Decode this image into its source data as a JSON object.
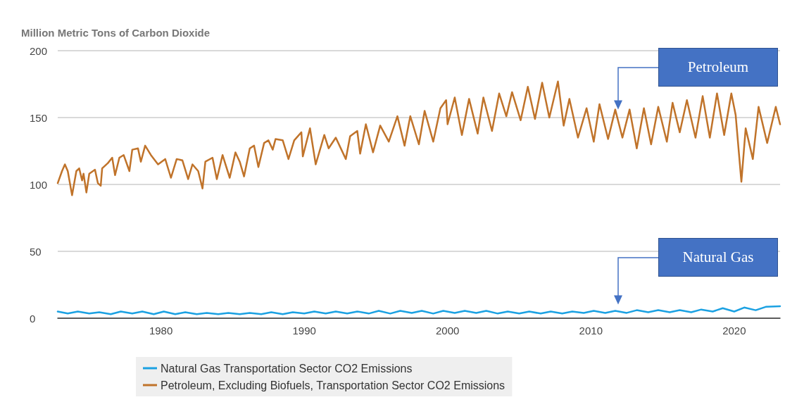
{
  "chart_data": {
    "type": "line",
    "ylabel": "Million Metric Tons of Carbon Dioxide",
    "xlim": [
      1972.8,
      2023.2
    ],
    "xticks": [
      1980,
      1990,
      2000,
      2010,
      2020
    ],
    "ylim": [
      0,
      200
    ],
    "yticks": [
      0,
      50,
      100,
      150,
      200
    ],
    "grid": "y",
    "legend": "bottom",
    "marker": "none",
    "line_style": "solid",
    "series": [
      {
        "name": "Natural Gas Transportation Sector CO2 Emissions",
        "color": "#1ba1e2",
        "x": [
          1972.8,
          1973.5,
          1974.2,
          1975,
          1975.7,
          1976.5,
          1977.2,
          1978,
          1978.7,
          1979.5,
          1980.2,
          1981,
          1981.7,
          1982.5,
          1983.2,
          1984,
          1984.7,
          1985.5,
          1986.2,
          1987,
          1987.7,
          1988.5,
          1989.2,
          1990,
          1990.7,
          1991.5,
          1992.2,
          1993,
          1993.7,
          1994.5,
          1995.2,
          1996,
          1996.7,
          1997.5,
          1998.2,
          1999,
          1999.7,
          2000.5,
          2001.2,
          2002,
          2002.7,
          2003.5,
          2004.2,
          2005,
          2005.7,
          2006.5,
          2007.2,
          2008,
          2008.7,
          2009.5,
          2010.2,
          2011,
          2011.7,
          2012.5,
          2013.2,
          2014,
          2014.7,
          2015.5,
          2016.2,
          2017,
          2017.7,
          2018.5,
          2019.2,
          2020,
          2020.7,
          2021.5,
          2022.2,
          2023.2
        ],
        "values": [
          5,
          3.5,
          5,
          3.5,
          4.5,
          3,
          5,
          3.5,
          5,
          3,
          5,
          3,
          4.5,
          3,
          4,
          3,
          4,
          3,
          4,
          3,
          4.5,
          3,
          4.5,
          3.5,
          5,
          3.5,
          5,
          3.5,
          5,
          3.5,
          5.5,
          3.5,
          5.5,
          4,
          5.5,
          3.5,
          5.5,
          4,
          5.5,
          4,
          5.5,
          3.5,
          5,
          3.5,
          5,
          3.5,
          5,
          3.5,
          5,
          4,
          5.5,
          4,
          5.5,
          4,
          6,
          4.5,
          6,
          4.5,
          6,
          4.5,
          6.5,
          5,
          7.5,
          5,
          8,
          6,
          8.5,
          9
        ]
      },
      {
        "name": "Petroleum, Excluding Biofuels, Transportation Sector CO2 Emissions",
        "color": "#c0732a",
        "x": [
          1972.8,
          1973.1,
          1973.3,
          1973.5,
          1973.8,
          1974.1,
          1974.3,
          1974.5,
          1974.6,
          1974.8,
          1975,
          1975.4,
          1975.6,
          1975.8,
          1975.9,
          1976.3,
          1976.6,
          1976.8,
          1977.1,
          1977.4,
          1977.8,
          1978,
          1978.4,
          1978.6,
          1978.9,
          1979.3,
          1979.8,
          1980.3,
          1980.7,
          1981.1,
          1981.5,
          1981.9,
          1982.2,
          1982.6,
          1982.9,
          1983.1,
          1983.6,
          1983.9,
          1984.3,
          1984.8,
          1985.2,
          1985.5,
          1985.8,
          1986.2,
          1986.5,
          1986.8,
          1987.2,
          1987.5,
          1987.8,
          1988,
          1988.5,
          1988.9,
          1989.3,
          1989.8,
          1989.9,
          1990.4,
          1990.8,
          1991.4,
          1991.7,
          1992.2,
          1992.9,
          1993.2,
          1993.7,
          1993.9,
          1994.3,
          1994.8,
          1995.3,
          1995.9,
          1996.5,
          1997,
          1997.4,
          1998,
          1998.4,
          1999,
          1999.5,
          1999.9,
          2000,
          2000.5,
          2001,
          2001.5,
          2002.1,
          2002.5,
          2003.1,
          2003.6,
          2004.1,
          2004.5,
          2005.1,
          2005.6,
          2006.1,
          2006.6,
          2007.1,
          2007.7,
          2008.1,
          2008.5,
          2009.1,
          2009.7,
          2010.2,
          2010.6,
          2011.2,
          2011.7,
          2012.2,
          2012.7,
          2013.2,
          2013.7,
          2014.2,
          2014.7,
          2015.3,
          2015.7,
          2016.2,
          2016.7,
          2017.3,
          2017.8,
          2018.3,
          2018.8,
          2019.3,
          2019.8,
          2020.1,
          2020.5,
          2020.8,
          2021.3,
          2021.7,
          2022.3,
          2022.9,
          2023.2
        ],
        "values": [
          101,
          110,
          115,
          110,
          92,
          110,
          112,
          103,
          108,
          94,
          108,
          111,
          101,
          99,
          112,
          116,
          120,
          107,
          120,
          122,
          110,
          126,
          127,
          117,
          129,
          122,
          115,
          119,
          105,
          119,
          118,
          104,
          115,
          110,
          97,
          117,
          120,
          104,
          122,
          105,
          124,
          117,
          106,
          127,
          129,
          113,
          131,
          133,
          126,
          134,
          133,
          119,
          133,
          139,
          121,
          142,
          115,
          137,
          127,
          135,
          119,
          136,
          140,
          123,
          145,
          124,
          144,
          132,
          151,
          129,
          151,
          130,
          155,
          132,
          157,
          163,
          145,
          165,
          137,
          164,
          138,
          165,
          140,
          168,
          151,
          169,
          148,
          173,
          149,
          176,
          150,
          177,
          144,
          164,
          135,
          157,
          132,
          160,
          134,
          156,
          135,
          156,
          127,
          157,
          130,
          158,
          132,
          161,
          139,
          163,
          135,
          166,
          135,
          168,
          137,
          168,
          152,
          102,
          142,
          119,
          158,
          131,
          158,
          145
        ]
      }
    ],
    "annotations": [
      "Petroleum",
      "Natural Gas"
    ]
  }
}
